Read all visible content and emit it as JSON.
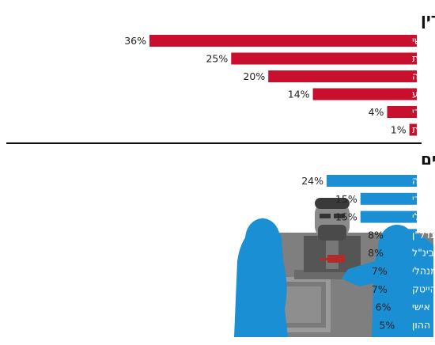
{
  "chart_data": [
    {
      "type": "bar",
      "title": "הסיבה שבגינה בחר המתמחה לעסוק בעריכת דין",
      "categories": [
        "עניין אישי",
        "תחושת שליחות",
        "פוטנציאל ההשתכרות הגבוה",
        "יוקרת המקצוע",
        "מדובר בתחום פופולארי",
        "מסיבות אחרות"
      ],
      "values": [
        36,
        25,
        20,
        14,
        4,
        1
      ],
      "unit": "%",
      "color": "#c8102e",
      "xlim": [
        0,
        36
      ]
    },
    {
      "type": "bar",
      "title": "תחומי ההתמחות המבוקשים",
      "categories": [
        "ליטיגציה",
        "משפט מסחרי",
        "התחום הפלילי",
        "נדל\"ן",
        "מסחרי בינ\"ל",
        "משפט המנהלי",
        "הייטק",
        "מעמד אישי",
        "שוק ההון"
      ],
      "values": [
        24,
        15,
        15,
        8,
        8,
        7,
        7,
        6,
        5
      ],
      "unit": "%",
      "color": "#1a8fd4",
      "xlim": [
        0,
        24
      ]
    }
  ],
  "colors": {
    "illustration_blue": "#1a8fd4",
    "illustration_dark": "#555555",
    "divider": "#111111"
  }
}
